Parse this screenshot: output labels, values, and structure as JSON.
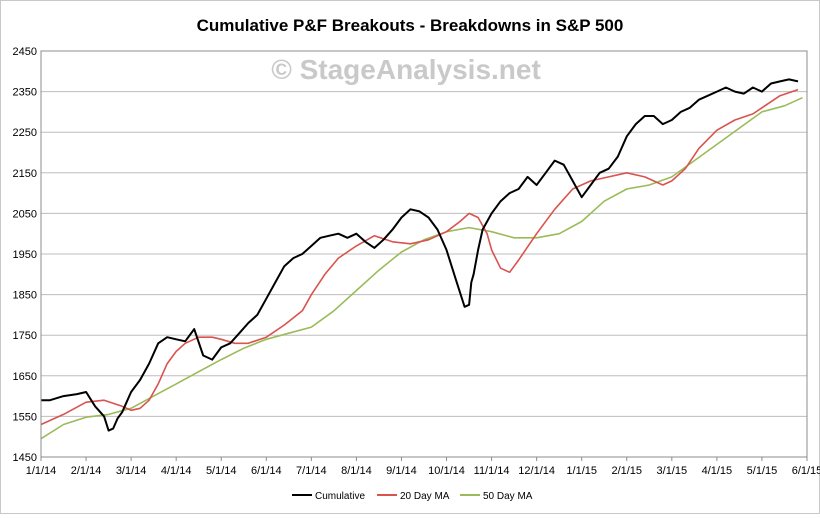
{
  "chart_data": {
    "type": "line",
    "title": "Cumulative P&F Breakouts - Breakdowns in S&P 500",
    "watermark": "© StageAnalysis.net",
    "xlabel": "",
    "ylabel": "",
    "ylim": [
      1450,
      2450
    ],
    "y_ticks": [
      1450,
      1550,
      1650,
      1750,
      1850,
      1950,
      2050,
      2150,
      2250,
      2350,
      2450
    ],
    "x_ticks": [
      "1/1/14",
      "2/1/14",
      "3/1/14",
      "4/1/14",
      "5/1/14",
      "6/1/14",
      "7/1/14",
      "8/1/14",
      "9/1/14",
      "10/1/14",
      "11/1/14",
      "12/1/14",
      "1/1/15",
      "2/1/15",
      "3/1/15",
      "4/1/15",
      "5/1/15",
      "6/1/15"
    ],
    "x_range_months": [
      0,
      17
    ],
    "grid": true,
    "legend_position": "bottom",
    "series": [
      {
        "name": "Cumulative",
        "color": "#000000",
        "x": [
          0,
          0.2,
          0.5,
          0.8,
          1,
          1.2,
          1.4,
          1.5,
          1.6,
          1.7,
          1.8,
          2,
          2.2,
          2.4,
          2.6,
          2.8,
          3,
          3.2,
          3.4,
          3.6,
          3.8,
          4,
          4.2,
          4.4,
          4.6,
          4.8,
          5,
          5.2,
          5.4,
          5.6,
          5.8,
          6,
          6.2,
          6.4,
          6.6,
          6.8,
          7,
          7.2,
          7.4,
          7.6,
          7.8,
          8,
          8.2,
          8.4,
          8.6,
          8.8,
          9,
          9.2,
          9.4,
          9.5,
          9.55,
          9.6,
          9.7,
          9.8,
          10,
          10.2,
          10.4,
          10.6,
          10.8,
          11,
          11.2,
          11.4,
          11.6,
          11.8,
          12,
          12.2,
          12.4,
          12.6,
          12.8,
          13,
          13.2,
          13.4,
          13.6,
          13.8,
          14,
          14.2,
          14.4,
          14.6,
          14.8,
          15,
          15.2,
          15.4,
          15.6,
          15.8,
          16,
          16.2,
          16.4,
          16.6,
          16.8
        ],
        "values": [
          1590,
          1590,
          1600,
          1605,
          1610,
          1575,
          1550,
          1515,
          1520,
          1545,
          1560,
          1610,
          1640,
          1680,
          1730,
          1745,
          1740,
          1735,
          1765,
          1700,
          1690,
          1720,
          1730,
          1755,
          1780,
          1800,
          1840,
          1880,
          1920,
          1940,
          1950,
          1970,
          1990,
          1995,
          2000,
          1990,
          2000,
          1980,
          1965,
          1985,
          2010,
          2040,
          2060,
          2055,
          2040,
          2010,
          1960,
          1890,
          1820,
          1825,
          1880,
          1900,
          1960,
          2010,
          2050,
          2080,
          2100,
          2110,
          2140,
          2120,
          2150,
          2180,
          2170,
          2130,
          2090,
          2120,
          2150,
          2160,
          2190,
          2240,
          2270,
          2290,
          2290,
          2270,
          2280,
          2300,
          2310,
          2330,
          2340,
          2350,
          2360,
          2350,
          2345,
          2360,
          2350,
          2370,
          2375,
          2380,
          2375
        ]
      },
      {
        "name": "20 Day MA",
        "color": "#d9534f",
        "x": [
          0,
          0.5,
          1,
          1.4,
          1.8,
          2,
          2.2,
          2.4,
          2.6,
          2.8,
          3,
          3.2,
          3.5,
          3.8,
          4,
          4.3,
          4.6,
          5,
          5.4,
          5.8,
          6,
          6.3,
          6.6,
          7,
          7.4,
          7.8,
          8.2,
          8.6,
          9,
          9.3,
          9.5,
          9.7,
          9.9,
          10,
          10.2,
          10.4,
          10.6,
          11,
          11.4,
          11.8,
          12.2,
          12.6,
          13,
          13.4,
          13.8,
          14,
          14.3,
          14.6,
          15,
          15.4,
          15.8,
          16,
          16.4,
          16.8
        ],
        "values": [
          1530,
          1555,
          1585,
          1590,
          1575,
          1565,
          1570,
          1590,
          1630,
          1680,
          1710,
          1730,
          1745,
          1745,
          1740,
          1730,
          1730,
          1745,
          1775,
          1810,
          1850,
          1900,
          1940,
          1970,
          1995,
          1980,
          1975,
          1985,
          2005,
          2030,
          2050,
          2040,
          2000,
          1960,
          1915,
          1905,
          1935,
          2000,
          2060,
          2110,
          2130,
          2140,
          2150,
          2140,
          2120,
          2130,
          2160,
          2210,
          2255,
          2280,
          2295,
          2310,
          2340,
          2355
        ]
      },
      {
        "name": "50 Day MA",
        "color": "#9bbb59",
        "x": [
          0,
          0.5,
          1,
          1.5,
          2,
          2.5,
          3,
          3.5,
          4,
          4.5,
          5,
          5.5,
          6,
          6.5,
          7,
          7.5,
          8,
          8.5,
          9,
          9.5,
          10,
          10.5,
          11,
          11.5,
          12,
          12.5,
          13,
          13.5,
          14,
          14.5,
          15,
          15.5,
          16,
          16.5,
          16.9
        ],
        "values": [
          1495,
          1530,
          1548,
          1555,
          1570,
          1600,
          1630,
          1660,
          1690,
          1718,
          1740,
          1755,
          1770,
          1810,
          1860,
          1910,
          1955,
          1985,
          2005,
          2015,
          2005,
          1990,
          1990,
          2000,
          2030,
          2080,
          2110,
          2120,
          2140,
          2180,
          2220,
          2260,
          2300,
          2315,
          2335
        ]
      }
    ]
  }
}
